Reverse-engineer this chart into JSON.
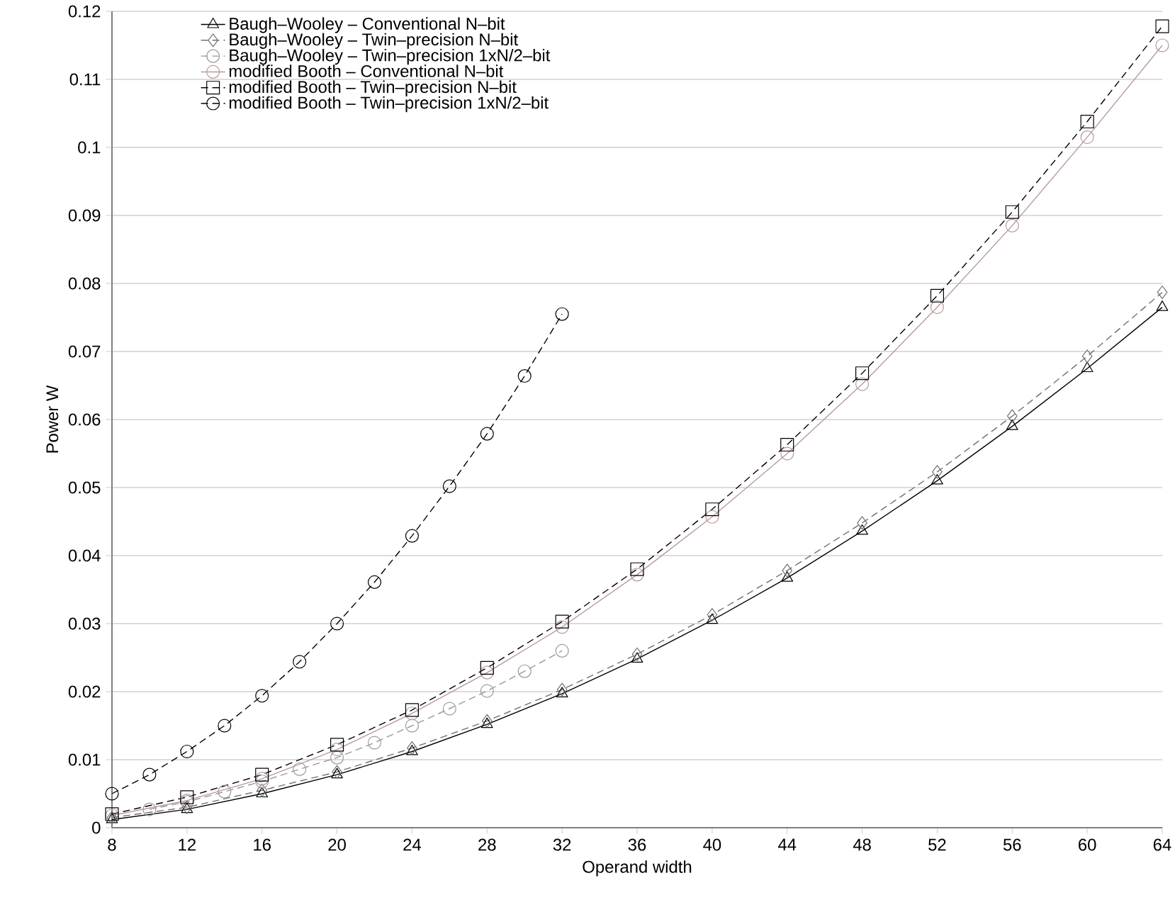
{
  "chart_data": {
    "type": "line",
    "xlabel": "Operand width",
    "ylabel": "Power W",
    "xlim": [
      8,
      64
    ],
    "xticks": [
      8,
      12,
      16,
      20,
      24,
      28,
      32,
      36,
      40,
      44,
      48,
      52,
      56,
      60,
      64
    ],
    "ylim": [
      0,
      0.12
    ],
    "yticks": [
      0,
      0.01,
      0.02,
      0.03,
      0.04,
      0.05,
      0.06,
      0.07,
      0.08,
      0.09,
      0.1,
      0.11,
      0.12
    ],
    "grid": "y",
    "legend": "top left",
    "series": [
      {
        "name": "Baugh–Wooley – Conventional N–bit",
        "color": "#000000",
        "marker": "triangle",
        "line_style": "solid",
        "x": [
          8,
          12,
          16,
          20,
          24,
          28,
          32,
          36,
          40,
          44,
          48,
          52,
          56,
          60,
          64
        ],
        "values": [
          0.0012,
          0.0027,
          0.005,
          0.0078,
          0.0112,
          0.0152,
          0.0197,
          0.0248,
          0.0305,
          0.0367,
          0.0436,
          0.051,
          0.059,
          0.0675,
          0.0765
        ]
      },
      {
        "name": "Baugh–Wooley – Twin–precision N–bit",
        "color": "#707070",
        "marker": "diamond",
        "line_style": "dashed",
        "x": [
          8,
          12,
          16,
          20,
          24,
          28,
          32,
          36,
          40,
          44,
          48,
          52,
          56,
          60,
          64
        ],
        "values": [
          0.0015,
          0.003,
          0.0055,
          0.0082,
          0.0117,
          0.0157,
          0.0203,
          0.0255,
          0.0313,
          0.0378,
          0.0448,
          0.0523,
          0.0605,
          0.0693,
          0.0787
        ]
      },
      {
        "name": "Baugh–Wooley – Twin–precision 1xN/2–bit",
        "color": "#999999",
        "marker": "circle",
        "line_style": "dashed",
        "x": [
          10,
          12,
          14,
          16,
          18,
          20,
          22,
          24,
          26,
          28,
          30,
          32
        ],
        "values": [
          0.0027,
          0.0038,
          0.0053,
          0.0068,
          0.0086,
          0.0103,
          0.0125,
          0.015,
          0.0175,
          0.0201,
          0.023,
          0.026
        ]
      },
      {
        "name": "modified Booth – Conventional N–bit",
        "color": "#b89a9a",
        "marker": "circle",
        "line_style": "solid",
        "x": [
          8,
          12,
          16,
          20,
          24,
          28,
          32,
          36,
          40,
          44,
          48,
          52,
          56,
          60,
          64
        ],
        "values": [
          0.0018,
          0.004,
          0.0072,
          0.0115,
          0.0168,
          0.0228,
          0.0295,
          0.0372,
          0.0457,
          0.055,
          0.0652,
          0.0765,
          0.0885,
          0.1015,
          0.115
        ]
      },
      {
        "name": "modified Booth – Twin–precision N–bit",
        "color": "#000000",
        "marker": "square",
        "line_style": "dashed",
        "x": [
          8,
          12,
          16,
          20,
          24,
          28,
          32,
          36,
          40,
          44,
          48,
          52,
          56,
          60,
          64
        ],
        "values": [
          0.002,
          0.0045,
          0.0078,
          0.0122,
          0.0173,
          0.0235,
          0.0303,
          0.038,
          0.0468,
          0.0563,
          0.0668,
          0.0782,
          0.0905,
          0.1038,
          0.1178
        ]
      },
      {
        "name": "modified Booth – Twin–precision 1xN/2–bit",
        "color": "#000000",
        "marker": "circle",
        "line_style": "dashed",
        "x": [
          8,
          10,
          12,
          14,
          16,
          18,
          20,
          22,
          24,
          26,
          28,
          30,
          32
        ],
        "values": [
          0.005,
          0.0078,
          0.0112,
          0.015,
          0.0194,
          0.0244,
          0.03,
          0.0361,
          0.0429,
          0.0502,
          0.0579,
          0.0664,
          0.0755
        ]
      }
    ]
  }
}
